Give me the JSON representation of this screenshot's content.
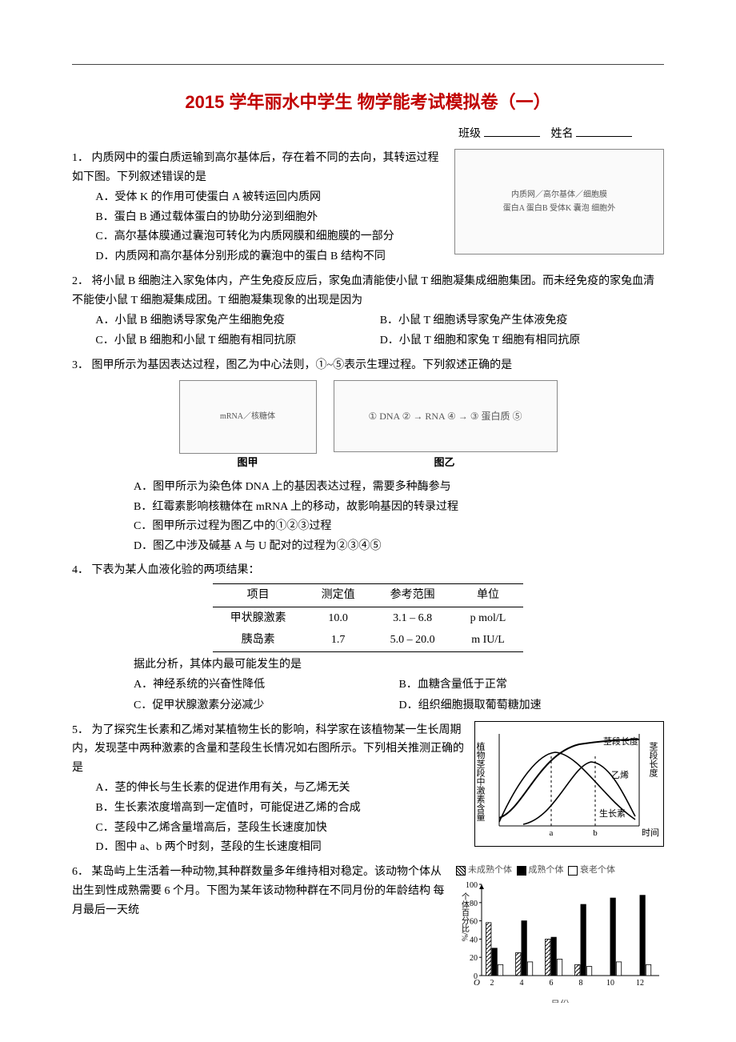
{
  "title": "2015 学年丽水中学生 物学能考试模拟卷（一）",
  "classline": {
    "banji": "班级",
    "xingming": "姓名"
  },
  "q1": {
    "num": "1．",
    "stem": "内质网中的蛋白质运输到高尔基体后，存在着不同的去向，其转运过程如下图。下列叙述错误的是",
    "opts": {
      "A": "A．受体 K 的作用可使蛋白 A 被转运回内质网",
      "B": "B．蛋白 B 通过载体蛋白的协助分泌到细胞外",
      "C": "C．高尔基体膜通过囊泡可转化为内质网膜和细胞膜的一部分",
      "D": "D．内质网和高尔基体分别形成的囊泡中的蛋白 B 结构不同"
    },
    "fig_label": "内质网／高尔基体／细胞膜\n蛋白A 蛋白B 受体K 囊泡 细胞外"
  },
  "q2": {
    "num": "2．",
    "stem": "将小鼠 B 细胞注入家兔体内，产生免疫反应后，家兔血清能使小鼠 T 细胞凝集成细胞集团。而未经免疫的家兔血清不能使小鼠 T 细胞凝集成团。T 细胞凝集现象的出现是因为",
    "opts": {
      "A": "A．小鼠 B 细胞诱导家兔产生细胞免疫",
      "B": "B．小鼠 T 细胞诱导家兔产生体液免疫",
      "C": "C．小鼠 B 细胞和小鼠 T 细胞有相同抗原",
      "D": "D．小鼠 T 细胞和家兔 T 细胞有相同抗原"
    }
  },
  "q3": {
    "num": "3．",
    "stem": "图甲所示为基因表达过程，图乙为中心法则，①~⑤表示生理过程。下列叙述正确的是",
    "fig_left": "mRNA／核糖体",
    "fig_right_text": "① DNA ② → RNA ④ → ③ 蛋白质   ⑤",
    "cap_left": "图甲",
    "cap_right": "图乙",
    "opts": {
      "A": "A．图甲所示为染色体 DNA 上的基因表达过程，需要多种酶参与",
      "B": "B．红霉素影响核糖体在 mRNA 上的移动，故影响基因的转录过程",
      "C": "C．图甲所示过程为图乙中的①②③过程",
      "D": "D．图乙中涉及碱基 A 与 U 配对的过程为②③④⑤"
    }
  },
  "q4": {
    "num": "4．",
    "stem": "下表为某人血液化验的两项结果：",
    "table": {
      "headers": [
        "项目",
        "测定值",
        "参考范围",
        "单位"
      ],
      "rows": [
        [
          "甲状腺激素",
          "10.0",
          "3.1 – 6.8",
          "p mol/L"
        ],
        [
          "胰岛素",
          "1.7",
          "5.0 – 20.0",
          "m IU/L"
        ]
      ]
    },
    "post": "据此分析，其体内最可能发生的是",
    "opts": {
      "A": "A．神经系统的兴奋性降低",
      "B": "B．血糖含量低于正常",
      "C": "C．促甲状腺激素分泌减少",
      "D": "D．组织细胞摄取葡萄糖加速"
    }
  },
  "q5": {
    "num": "5．",
    "stem": "为了探究生长素和乙烯对某植物生长的影响，科学家在该植物某一生长周期内，发现茎中两种激素的含量和茎段生长情况如右图所示。下列相关推测正确的是",
    "opts": {
      "A": "A．茎的伸长与生长素的促进作用有关，与乙烯无关",
      "B": "B．生长素浓度增高到一定值时，可能促进乙烯的合成",
      "C": "C．茎段中乙烯含量增高后，茎段生长速度加快",
      "D": "D．图中 a、b 两个时刻，茎段的生长速度相同"
    },
    "chart": {
      "y1_label": "植物茎段中激素含量",
      "y2_label": "茎段长度",
      "x_label": "时间",
      "marks": [
        "a",
        "b"
      ],
      "series": [
        "茎段长度",
        "乙烯",
        "生长素"
      ]
    }
  },
  "q6": {
    "num": "6．",
    "stem": "某岛屿上生活着一种动物,其种群数量多年维持相对稳定。该动物个体从出生到性成熟需要 6 个月。下图为某年该动物种群在不同月份的年龄结构 每月最后一天统",
    "chart": {
      "legend": [
        "未成熟个体",
        "成熟个体",
        "衰老个体"
      ],
      "y_label": "个体百分比/%",
      "y_ticks": [
        0,
        20,
        40,
        60,
        80,
        100
      ],
      "x_label": "月份",
      "x_ticks": [
        2,
        4,
        6,
        8,
        10,
        12
      ],
      "data": {
        "未成熟": [
          58,
          25,
          40,
          12,
          0,
          0
        ],
        "成熟": [
          30,
          60,
          42,
          78,
          85,
          88
        ],
        "衰老": [
          12,
          15,
          18,
          10,
          15,
          12
        ]
      },
      "colors": {
        "未成熟": "hatch",
        "成熟": "#000000",
        "衰老": "#ffffff"
      }
    }
  }
}
